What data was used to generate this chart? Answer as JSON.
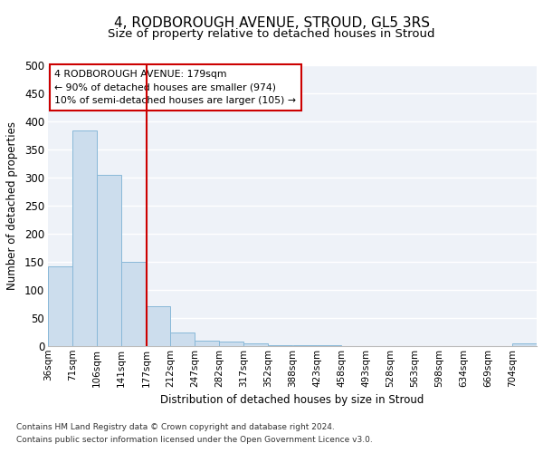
{
  "title": "4, RODBOROUGH AVENUE, STROUD, GL5 3RS",
  "subtitle": "Size of property relative to detached houses in Stroud",
  "xlabel": "Distribution of detached houses by size in Stroud",
  "ylabel": "Number of detached properties",
  "footnote1": "Contains HM Land Registry data © Crown copyright and database right 2024.",
  "footnote2": "Contains public sector information licensed under the Open Government Licence v3.0.",
  "bar_edges": [
    36,
    71,
    106,
    141,
    177,
    212,
    247,
    282,
    317,
    352,
    388,
    423,
    458,
    493,
    528,
    563,
    598,
    634,
    669,
    704,
    739
  ],
  "bar_heights": [
    141,
    383,
    305,
    150,
    70,
    24,
    10,
    8,
    5,
    2,
    2,
    1,
    0,
    0,
    0,
    0,
    0,
    0,
    0,
    5
  ],
  "bar_color": "#ccdded",
  "bar_edge_color": "#88b8d8",
  "vline_x": 177,
  "vline_color": "#cc0000",
  "annotation_title": "4 RODBOROUGH AVENUE: 179sqm",
  "annotation_line1": "← 90% of detached houses are smaller (974)",
  "annotation_line2": "10% of semi-detached houses are larger (105) →",
  "ylim": [
    0,
    500
  ],
  "yticks": [
    0,
    50,
    100,
    150,
    200,
    250,
    300,
    350,
    400,
    450,
    500
  ],
  "background_color": "#eef2f8",
  "grid_color": "#ffffff",
  "fig_background": "#ffffff",
  "title_fontsize": 11,
  "subtitle_fontsize": 9.5,
  "axis_label_fontsize": 8.5,
  "tick_label_fontsize": 7.5,
  "footnote_fontsize": 6.5,
  "ylabel_fontsize": 8.5
}
